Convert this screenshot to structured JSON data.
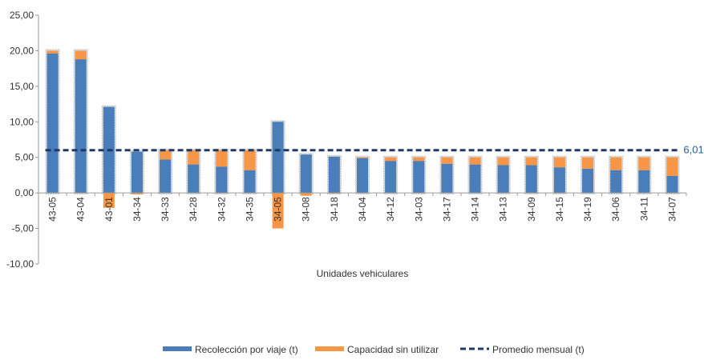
{
  "chart_data": {
    "type": "bar",
    "stacked": true,
    "xlabel": "Unidades vehiculares",
    "ylabel": "",
    "ylim": [
      -10,
      25
    ],
    "yticks": [
      "-10,00",
      "-5,00",
      "0,00",
      "5,00",
      "10,00",
      "15,00",
      "20,00",
      "25,00"
    ],
    "ytick_values": [
      -10,
      -5,
      0,
      5,
      10,
      15,
      20,
      25
    ],
    "categories": [
      "43-05",
      "43-04",
      "43-01",
      "34-34",
      "34-33",
      "34-28",
      "34-32",
      "34-35",
      "34-05",
      "34-08",
      "34-18",
      "34-04",
      "34-12",
      "34-03",
      "34-17",
      "34-14",
      "34-13",
      "34-09",
      "34-15",
      "34-19",
      "34-06",
      "34-11",
      "34-07"
    ],
    "series": [
      {
        "name": "Recolección por viaje (t)",
        "color": "#4a7ebb",
        "values": [
          19.6,
          18.8,
          12.1,
          5.8,
          4.7,
          4.0,
          3.7,
          3.2,
          10.0,
          5.4,
          5.1,
          4.9,
          4.5,
          4.5,
          4.1,
          4.0,
          3.9,
          3.9,
          3.6,
          3.4,
          3.2,
          3.2,
          2.4
        ]
      },
      {
        "name": "Capacidad sin utilizar",
        "color": "#f79646",
        "values": [
          0.4,
          1.2,
          -2.1,
          -0.2,
          1.3,
          2.0,
          2.3,
          2.8,
          -5.0,
          -0.4,
          -0.1,
          0.1,
          0.5,
          0.5,
          0.9,
          1.0,
          1.1,
          1.1,
          1.4,
          1.6,
          1.8,
          1.8,
          2.6
        ]
      }
    ],
    "average": {
      "name": "Promedio mensual (t)",
      "value": 6.01,
      "label": "6,01",
      "color": "#1f3864",
      "label_color": "#2e5c8a"
    },
    "legend": {
      "position": "bottom",
      "items": [
        "Recolección por viaje (t)",
        "Capacidad sin utilizar",
        "Promedio mensual (t)"
      ]
    },
    "grid": false
  }
}
